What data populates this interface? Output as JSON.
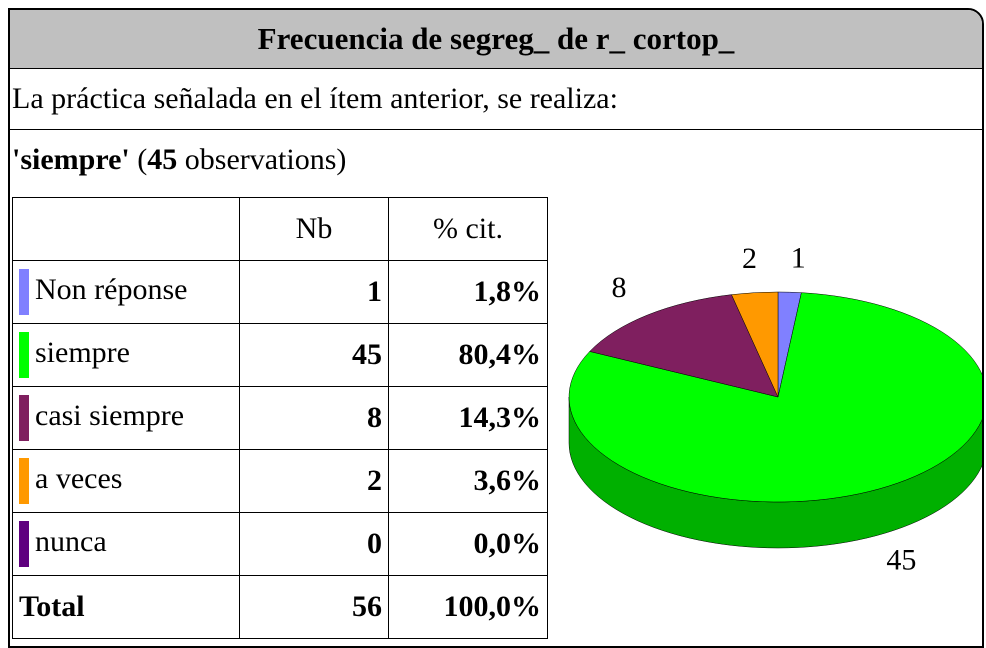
{
  "header": {
    "title": "Frecuencia de segreg_ de r_ cortop_"
  },
  "question": "La práctica señalada en el ítem anterior, se realiza:",
  "filter": {
    "value": "'siempre'",
    "open": "(",
    "count": "45",
    "suffix": "observations)"
  },
  "table": {
    "columns": [
      "Nb",
      "% cit."
    ],
    "rows": [
      {
        "label": "Non réponse",
        "color": "#8080ff",
        "side": "#5a5ab3",
        "nb": 1,
        "pct": "1,8%"
      },
      {
        "label": "siempre",
        "color": "#00ff00",
        "side": "#00b000",
        "nb": 45,
        "pct": "80,4%"
      },
      {
        "label": "casi siempre",
        "color": "#7f1f5f",
        "side": "#581642",
        "nb": 8,
        "pct": "14,3%"
      },
      {
        "label": "a veces",
        "color": "#ff9900",
        "side": "#b36b00",
        "nb": 2,
        "pct": "3,6%"
      },
      {
        "label": "nunca",
        "color": "#5f007f",
        "side": "#420058",
        "nb": 0,
        "pct": "0,0%"
      }
    ],
    "total": {
      "label": "Total",
      "nb": 56,
      "pct": "100,0%"
    }
  }
}
